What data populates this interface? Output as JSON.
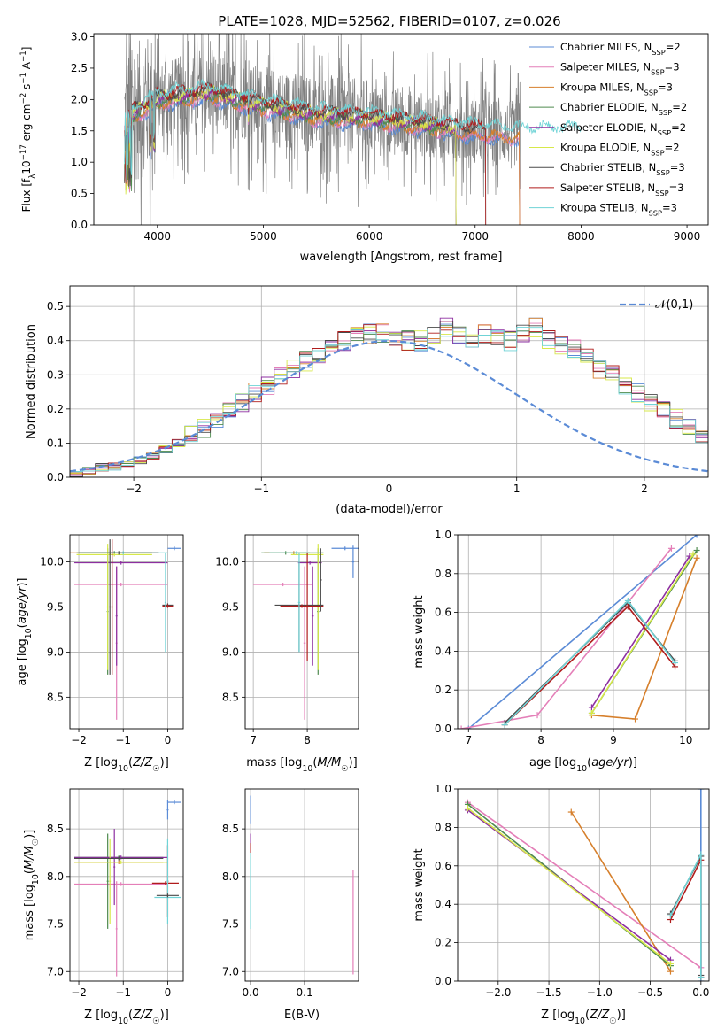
{
  "figure_title": "PLATE=1028, MJD=52562, FIBERID=0107, z=0.026",
  "colors": {
    "c1": "#5b8bd6",
    "c2": "#e47fb8",
    "c3": "#d67f2b",
    "c4": "#4f8b4f",
    "c5": "#8d2fa0",
    "c6": "#d7e84a",
    "c7": "#4a4a4a",
    "c8": "#b01c1c",
    "c9": "#6fd3d6",
    "data": "#808080",
    "normal": "#5b8bd6"
  },
  "chart_data": [
    {
      "id": "spectrum",
      "type": "line",
      "title": "PLATE=1028, MJD=52562, FIBERID=0107, z=0.026",
      "xlabel": "wavelength [Angstrom, rest frame]",
      "ylabel": "Flux [f_λ10^-17 erg cm^-2 s^-1 A^-1]",
      "xlim": [
        3400,
        9200
      ],
      "ylim": [
        0,
        3.05
      ],
      "xticks": [
        4000,
        5000,
        6000,
        7000,
        8000,
        9000
      ],
      "yticks": [
        0.0,
        0.5,
        1.0,
        1.5,
        2.0,
        2.5,
        3.0
      ],
      "grid": false,
      "legend_position": "top-right",
      "data_series": {
        "name": "",
        "x_range": [
          3690,
          7430
        ],
        "approx_continuum": [
          [
            3700,
            1.7
          ],
          [
            4000,
            2.0
          ],
          [
            4500,
            2.1
          ],
          [
            5000,
            1.9
          ],
          [
            5500,
            1.75
          ],
          [
            6000,
            1.7
          ],
          [
            6500,
            1.6
          ],
          [
            7000,
            1.5
          ],
          [
            7400,
            1.45
          ]
        ]
      },
      "series": [
        {
          "name": "Chabrier MILES, N_SSP=2",
          "x_range": [
            3690,
            7420
          ]
        },
        {
          "name": "Salpeter MILES, N_SSP=3",
          "x_range": [
            3690,
            7420
          ]
        },
        {
          "name": "Kroupa MILES, N_SSP=3",
          "x_range": [
            3690,
            7420
          ]
        },
        {
          "name": "Chabrier ELODIE, N_SSP=2",
          "x_range": [
            3690,
            6820
          ]
        },
        {
          "name": "Salpeter ELODIE, N_SSP=2",
          "x_range": [
            3690,
            6820
          ]
        },
        {
          "name": "Kroupa ELODIE, N_SSP=2",
          "x_range": [
            3690,
            6820
          ]
        },
        {
          "name": "Chabrier STELIB, N_SSP=3",
          "x_range": [
            3690,
            7100
          ]
        },
        {
          "name": "Salpeter STELIB, N_SSP=3",
          "x_range": [
            3690,
            7100
          ]
        },
        {
          "name": "Kroupa STELIB, N_SSP=3",
          "x_range": [
            3690,
            8000
          ]
        }
      ]
    },
    {
      "id": "residuals",
      "type": "line",
      "xlabel": "(data-model)/error",
      "ylabel": "Normed distribution",
      "xlim": [
        -2.5,
        2.5
      ],
      "ylim": [
        0,
        0.56
      ],
      "xticks": [
        -2,
        -1,
        0,
        1,
        2
      ],
      "yticks": [
        0.0,
        0.1,
        0.2,
        0.3,
        0.4,
        0.5
      ],
      "grid": true,
      "legend_position": "top-right",
      "legend": "𝒩(0,1)",
      "bin_width": 0.1,
      "hist_base": [
        0.01,
        0.02,
        0.03,
        0.03,
        0.04,
        0.05,
        0.06,
        0.08,
        0.1,
        0.12,
        0.14,
        0.17,
        0.2,
        0.22,
        0.25,
        0.27,
        0.3,
        0.32,
        0.34,
        0.36,
        0.38,
        0.4,
        0.41,
        0.42,
        0.42,
        0.41,
        0.4,
        0.4,
        0.41,
        0.44,
        0.42,
        0.41,
        0.42,
        0.41,
        0.4,
        0.42,
        0.44,
        0.4,
        0.39,
        0.38,
        0.35,
        0.32,
        0.3,
        0.27,
        0.25,
        0.22,
        0.2,
        0.17,
        0.15,
        0.13,
        0.12,
        0.1,
        0.09,
        0.08,
        0.07,
        0.06,
        0.05,
        0.05,
        0.04,
        0.03,
        0.03,
        0.02,
        0.02,
        0.02,
        0.02,
        0.02,
        0.02,
        0.02,
        0.01,
        0.01,
        0.01,
        0.01
      ],
      "hist_start": -2.5
    },
    {
      "id": "age_vs_Z",
      "type": "scatter",
      "xlabel": "Z [log10(Z/Z☉)]",
      "ylabel": "age [log10(age/yr)]",
      "xlim": [
        -2.2,
        0.35
      ],
      "ylim": [
        8.15,
        10.3
      ],
      "xticks": [
        -2,
        -1,
        0
      ],
      "yticks": [
        8.5,
        9.0,
        9.5,
        10.0
      ],
      "grid": true,
      "errorbars": [
        {
          "c": "c1",
          "x": 0.15,
          "xerr": 0.15,
          "y": 10.15,
          "yerr": 0.02
        },
        {
          "c": "c2",
          "x": -1.15,
          "xerr": 0.02,
          "y": 9.1,
          "yerr": 0.85
        },
        {
          "c": "c2",
          "x": -1.05,
          "xerr": 1.05,
          "y": 9.75,
          "yerr": 0.02
        },
        {
          "c": "c3",
          "x": -1.3,
          "xerr": 0.95,
          "y": 10.1,
          "yerr": 0.02
        },
        {
          "c": "c4",
          "x": -1.35,
          "xerr": 0.02,
          "y": 9.45,
          "yerr": 0.7
        },
        {
          "c": "c4",
          "x": -1.2,
          "xerr": 0.85,
          "y": 10.1,
          "yerr": 0.02
        },
        {
          "c": "c5",
          "x": -1.15,
          "xerr": 0.02,
          "y": 9.4,
          "yerr": 0.55
        },
        {
          "c": "c5",
          "x": -1.05,
          "xerr": 1.05,
          "y": 9.99,
          "yerr": 0.02
        },
        {
          "c": "c6",
          "x": -1.35,
          "xerr": 0.02,
          "y": 9.5,
          "yerr": 0.7
        },
        {
          "c": "c6",
          "x": -1.2,
          "xerr": 0.85,
          "y": 10.08,
          "yerr": 0.02
        },
        {
          "c": "c7",
          "x": -1.3,
          "xerr": 0.02,
          "y": 9.5,
          "yerr": 0.75
        },
        {
          "c": "c7",
          "x": 0.0,
          "xerr": 0.12,
          "y": 9.52,
          "yerr": 0.02
        },
        {
          "c": "c8",
          "x": -1.25,
          "xerr": 0.02,
          "y": 9.5,
          "yerr": 0.75
        },
        {
          "c": "c8",
          "x": 0.0,
          "xerr": 0.12,
          "y": 9.51,
          "yerr": 0.02
        },
        {
          "c": "c9",
          "x": -0.05,
          "xerr": 0.02,
          "y": 9.55,
          "yerr": 0.55
        },
        {
          "c": "c9",
          "x": -1.0,
          "xerr": 1.0,
          "y": 10.1,
          "yerr": 0.02
        },
        {
          "c": "c7",
          "x": -1.1,
          "xerr": 0.9,
          "y": 10.1,
          "yerr": 0.02
        }
      ]
    },
    {
      "id": "age_vs_mass",
      "type": "scatter",
      "xlabel": "mass [log10(M/M☉)]",
      "ylabel": "",
      "xlim": [
        6.85,
        8.95
      ],
      "ylim": [
        8.15,
        10.3
      ],
      "xticks": [
        7,
        8
      ],
      "yticks": [
        8.5,
        9.0,
        9.5,
        10.0
      ],
      "grid": true,
      "errorbars": [
        {
          "c": "c1",
          "x": 8.7,
          "xerr": 0.25,
          "y": 10.15,
          "yerr": 0.02
        },
        {
          "c": "c1",
          "x": 8.85,
          "xerr": 0.02,
          "y": 10.0,
          "yerr": 0.18
        },
        {
          "c": "c2",
          "x": 7.95,
          "xerr": 0.02,
          "y": 9.1,
          "yerr": 0.85
        },
        {
          "c": "c2",
          "x": 7.55,
          "xerr": 0.55,
          "y": 9.75,
          "yerr": 0.02
        },
        {
          "c": "c3",
          "x": 7.75,
          "xerr": 0.55,
          "y": 10.1,
          "yerr": 0.02
        },
        {
          "c": "c4",
          "x": 8.2,
          "xerr": 0.02,
          "y": 9.45,
          "yerr": 0.7
        },
        {
          "c": "c4",
          "x": 7.6,
          "xerr": 0.45,
          "y": 10.1,
          "yerr": 0.02
        },
        {
          "c": "c5",
          "x": 8.1,
          "xerr": 0.02,
          "y": 9.4,
          "yerr": 0.55
        },
        {
          "c": "c5",
          "x": 8.05,
          "xerr": 0.22,
          "y": 9.99,
          "yerr": 0.02
        },
        {
          "c": "c6",
          "x": 8.2,
          "xerr": 0.02,
          "y": 9.5,
          "yerr": 0.7
        },
        {
          "c": "c6",
          "x": 8.0,
          "xerr": 0.3,
          "y": 10.08,
          "yerr": 0.02
        },
        {
          "c": "c7",
          "x": 7.85,
          "xerr": 0.02,
          "y": 9.5,
          "yerr": 0.5
        },
        {
          "c": "c7",
          "x": 7.85,
          "xerr": 0.45,
          "y": 9.52,
          "yerr": 0.02
        },
        {
          "c": "c8",
          "x": 8.0,
          "xerr": 0.02,
          "y": 9.5,
          "yerr": 0.6
        },
        {
          "c": "c8",
          "x": 7.9,
          "xerr": 0.4,
          "y": 9.51,
          "yerr": 0.02
        },
        {
          "c": "c9",
          "x": 7.85,
          "xerr": 0.02,
          "y": 9.55,
          "yerr": 0.55
        },
        {
          "c": "c9",
          "x": 7.8,
          "xerr": 0.5,
          "y": 10.1,
          "yerr": 0.02
        },
        {
          "c": "c7",
          "x": 8.25,
          "xerr": 0.02,
          "y": 9.8,
          "yerr": 0.35
        }
      ]
    },
    {
      "id": "weight_vs_age",
      "type": "line",
      "xlabel": "age [log10(age/yr)]",
      "ylabel": "mass weight",
      "xlim": [
        6.85,
        10.32
      ],
      "ylim": [
        0,
        1.0
      ],
      "xticks": [
        7,
        8,
        9,
        10
      ],
      "yticks": [
        0.0,
        0.2,
        0.4,
        0.6,
        0.8,
        1.0
      ],
      "grid": true,
      "series": [
        {
          "c": "c1",
          "x": [
            7.0,
            10.15
          ],
          "y": [
            0.0,
            1.0
          ]
        },
        {
          "c": "c2",
          "x": [
            6.9,
            7.95,
            9.8
          ],
          "y": [
            0.0,
            0.07,
            0.93
          ]
        },
        {
          "c": "c3",
          "x": [
            8.7,
            9.3,
            10.15
          ],
          "y": [
            0.07,
            0.05,
            0.88
          ]
        },
        {
          "c": "c4",
          "x": [
            8.7,
            10.15
          ],
          "y": [
            0.08,
            0.92
          ]
        },
        {
          "c": "c5",
          "x": [
            8.7,
            10.05
          ],
          "y": [
            0.11,
            0.89
          ]
        },
        {
          "c": "c6",
          "x": [
            8.7,
            10.1
          ],
          "y": [
            0.08,
            0.9
          ]
        },
        {
          "c": "c7",
          "x": [
            7.5,
            9.2,
            9.85
          ],
          "y": [
            0.03,
            0.65,
            0.35
          ]
        },
        {
          "c": "c8",
          "x": [
            7.5,
            9.2,
            9.85
          ],
          "y": [
            0.02,
            0.63,
            0.32
          ]
        },
        {
          "c": "c9",
          "x": [
            7.5,
            9.2,
            9.85
          ],
          "y": [
            0.02,
            0.66,
            0.34
          ]
        }
      ]
    },
    {
      "id": "mass_vs_Z",
      "type": "scatter",
      "xlabel": "Z [log10(Z/Z☉)]",
      "ylabel": "mass [log10(M/M☉)]",
      "xlim": [
        -2.2,
        0.35
      ],
      "ylim": [
        6.9,
        8.92
      ],
      "xticks": [
        -2,
        -1,
        0
      ],
      "yticks": [
        7.0,
        7.5,
        8.0,
        8.5
      ],
      "grid": true,
      "errorbars": [
        {
          "c": "c1",
          "x": 0.15,
          "xerr": 0.15,
          "y": 8.78,
          "yerr": 0.02
        },
        {
          "c": "c1",
          "x": 0.0,
          "xerr": 0.02,
          "y": 8.7,
          "yerr": 0.1
        },
        {
          "c": "c2",
          "x": -1.15,
          "xerr": 0.02,
          "y": 7.45,
          "yerr": 0.5
        },
        {
          "c": "c2",
          "x": -1.05,
          "xerr": 1.05,
          "y": 7.92,
          "yerr": 0.02
        },
        {
          "c": "c3",
          "x": -1.1,
          "xerr": 1.0,
          "y": 8.15,
          "yerr": 0.02
        },
        {
          "c": "c4",
          "x": -1.35,
          "xerr": 0.02,
          "y": 7.95,
          "yerr": 0.5
        },
        {
          "c": "c4",
          "x": -1.1,
          "xerr": 1.0,
          "y": 8.2,
          "yerr": 0.02
        },
        {
          "c": "c5",
          "x": -1.2,
          "xerr": 0.02,
          "y": 8.1,
          "yerr": 0.4
        },
        {
          "c": "c5",
          "x": -1.05,
          "xerr": 1.05,
          "y": 8.2,
          "yerr": 0.02
        },
        {
          "c": "c6",
          "x": -1.3,
          "xerr": 0.02,
          "y": 7.95,
          "yerr": 0.45
        },
        {
          "c": "c6",
          "x": -1.05,
          "xerr": 1.05,
          "y": 8.15,
          "yerr": 0.02
        },
        {
          "c": "c7",
          "x": -1.1,
          "xerr": 1.0,
          "y": 8.19,
          "yerr": 0.02
        },
        {
          "c": "c8",
          "x": 0.0,
          "xerr": 0.02,
          "y": 7.95,
          "yerr": 0.38
        },
        {
          "c": "c8",
          "x": -0.05,
          "xerr": 0.3,
          "y": 7.93,
          "yerr": 0.02
        },
        {
          "c": "c9",
          "x": 0.0,
          "xerr": 0.02,
          "y": 7.95,
          "yerr": 0.45
        },
        {
          "c": "c9",
          "x": 0.0,
          "xerr": 0.3,
          "y": 7.78,
          "yerr": 0.02
        },
        {
          "c": "c7",
          "x": 0.0,
          "xerr": 0.25,
          "y": 7.8,
          "yerr": 0.02
        }
      ]
    },
    {
      "id": "mass_vs_ebv",
      "type": "scatter",
      "xlabel": "E(B-V)",
      "ylabel": "",
      "xlim": [
        -0.01,
        0.2
      ],
      "ylim": [
        6.9,
        8.92
      ],
      "xticks": [
        0.0,
        0.1
      ],
      "yticks": [
        7.0,
        7.5,
        8.0,
        8.5
      ],
      "grid": true,
      "errorbars": [
        {
          "c": "c1",
          "x": 0.0,
          "xerr": 0.0,
          "y": 8.7,
          "yerr": 0.15
        },
        {
          "c": "c2",
          "x": 0.19,
          "xerr": 0.0,
          "y": 7.52,
          "yerr": 0.55
        },
        {
          "c": "c3",
          "x": 0.0,
          "xerr": 0.0,
          "y": 8.1,
          "yerr": 0.35
        },
        {
          "c": "c4",
          "x": 0.0,
          "xerr": 0.0,
          "y": 7.9,
          "yerr": 0.45
        },
        {
          "c": "c5",
          "x": 0.0,
          "xerr": 0.0,
          "y": 8.05,
          "yerr": 0.4
        },
        {
          "c": "c6",
          "x": 0.0,
          "xerr": 0.0,
          "y": 7.8,
          "yerr": 0.35
        },
        {
          "c": "c7",
          "x": 0.0,
          "xerr": 0.0,
          "y": 7.95,
          "yerr": 0.4
        },
        {
          "c": "c8",
          "x": 0.0,
          "xerr": 0.0,
          "y": 7.95,
          "yerr": 0.4
        },
        {
          "c": "c9",
          "x": 0.0,
          "xerr": 0.0,
          "y": 7.85,
          "yerr": 0.4
        }
      ]
    },
    {
      "id": "weight_vs_Z",
      "type": "line",
      "xlabel": "Z [log10(Z/Z☉)]",
      "ylabel": "mass weight",
      "xlim": [
        -2.4,
        0.08
      ],
      "ylim": [
        0,
        1.0
      ],
      "xticks": [
        -2.0,
        -1.5,
        -1.0,
        -0.5,
        0.0
      ],
      "yticks": [
        0.0,
        0.2,
        0.4,
        0.6,
        0.8,
        1.0
      ],
      "grid": true,
      "series": [
        {
          "c": "c1",
          "x": [
            0.0,
            0.0
          ],
          "y": [
            0.0,
            1.0
          ]
        },
        {
          "c": "c2",
          "x": [
            -2.3,
            0.0
          ],
          "y": [
            0.93,
            0.07
          ]
        },
        {
          "c": "c3",
          "x": [
            -1.28,
            -0.3
          ],
          "y": [
            0.88,
            0.05
          ]
        },
        {
          "c": "c4",
          "x": [
            -2.3,
            -0.3
          ],
          "y": [
            0.92,
            0.08
          ]
        },
        {
          "c": "c5",
          "x": [
            -2.3,
            -0.3
          ],
          "y": [
            0.89,
            0.11
          ]
        },
        {
          "c": "c6",
          "x": [
            -2.3,
            -0.3
          ],
          "y": [
            0.9,
            0.09
          ]
        },
        {
          "c": "c7",
          "x": [
            -0.3,
            0.0,
            0.0
          ],
          "y": [
            0.35,
            0.65,
            0.03
          ]
        },
        {
          "c": "c8",
          "x": [
            -0.3,
            0.0,
            0.0
          ],
          "y": [
            0.32,
            0.63,
            0.02
          ]
        },
        {
          "c": "c9",
          "x": [
            -0.3,
            0.0,
            0.0
          ],
          "y": [
            0.34,
            0.66,
            0.02
          ]
        }
      ]
    }
  ]
}
